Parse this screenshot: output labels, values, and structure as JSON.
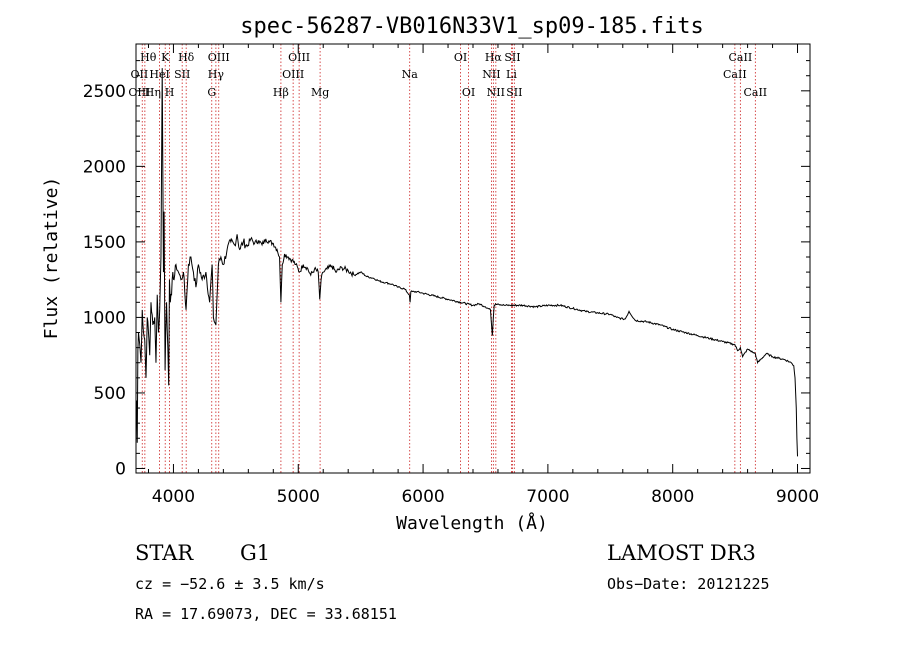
{
  "chart_data": {
    "type": "line",
    "title": "spec-56287-VB016N33V1_sp09-185.fits",
    "xlabel": "Wavelength (Å)",
    "ylabel": "Flux (relative)",
    "xlim": [
      3700,
      9100
    ],
    "ylim": [
      -30,
      2810
    ],
    "xticks": [
      {
        "value": 4000,
        "label": "4000"
      },
      {
        "value": 5000,
        "label": "5000"
      },
      {
        "value": 6000,
        "label": "6000"
      },
      {
        "value": 7000,
        "label": "7000"
      },
      {
        "value": 8000,
        "label": "8000"
      },
      {
        "value": 9000,
        "label": "9000"
      }
    ],
    "yticks": [
      {
        "value": 0,
        "label": "0"
      },
      {
        "value": 500,
        "label": "500"
      },
      {
        "value": 1000,
        "label": "1000"
      },
      {
        "value": 1500,
        "label": "1500"
      },
      {
        "value": 2000,
        "label": "2000"
      },
      {
        "value": 2500,
        "label": "2500"
      }
    ],
    "series": [
      {
        "name": "spectrum",
        "x": [
          3700,
          3705,
          3710,
          3715,
          3720,
          3730,
          3740,
          3750,
          3760,
          3770,
          3780,
          3790,
          3800,
          3810,
          3820,
          3835,
          3850,
          3860,
          3870,
          3880,
          3890,
          3900,
          3910,
          3920,
          3925,
          3933,
          3938,
          3945,
          3955,
          3962,
          3968,
          3975,
          3985,
          3995,
          4005,
          4020,
          4040,
          4060,
          4080,
          4101,
          4120,
          4140,
          4160,
          4180,
          4200,
          4230,
          4260,
          4290,
          4310,
          4320,
          4340,
          4360,
          4380,
          4400,
          4430,
          4460,
          4490,
          4510,
          4530,
          4560,
          4590,
          4620,
          4650,
          4680,
          4710,
          4740,
          4770,
          4800,
          4830,
          4850,
          4861,
          4872,
          4890,
          4920,
          4950,
          4980,
          5010,
          5040,
          5070,
          5100,
          5130,
          5160,
          5172,
          5183,
          5200,
          5230,
          5270,
          5300,
          5350,
          5400,
          5450,
          5500,
          5550,
          5600,
          5650,
          5700,
          5750,
          5800,
          5850,
          5890,
          5896,
          5902,
          5950,
          6000,
          6100,
          6200,
          6300,
          6400,
          6450,
          6500,
          6540,
          6555,
          6563,
          6570,
          6580,
          6600,
          6650,
          6700,
          6800,
          6900,
          7000,
          7100,
          7200,
          7300,
          7400,
          7500,
          7550,
          7600,
          7620,
          7650,
          7700,
          7800,
          7900,
          8000,
          8100,
          8200,
          8300,
          8400,
          8498,
          8520,
          8542,
          8560,
          8600,
          8640,
          8662,
          8680,
          8750,
          8800,
          8850,
          8900,
          8950,
          8970,
          8980,
          8990,
          8995,
          9000
        ],
        "y": [
          320,
          450,
          170,
          780,
          900,
          820,
          700,
          1050,
          900,
          850,
          600,
          1000,
          900,
          750,
          1100,
          950,
          1000,
          700,
          1150,
          900,
          1050,
          1400,
          2650,
          1300,
          1700,
          650,
          900,
          1100,
          800,
          550,
          1250,
          1100,
          1150,
          1300,
          1250,
          1350,
          1300,
          1250,
          1300,
          1050,
          1350,
          1400,
          1300,
          1200,
          1350,
          1250,
          1300,
          1100,
          1350,
          1000,
          950,
          1350,
          1400,
          1350,
          1450,
          1500,
          1480,
          1550,
          1450,
          1500,
          1470,
          1520,
          1490,
          1510,
          1480,
          1520,
          1500,
          1490,
          1450,
          1400,
          1100,
          1350,
          1420,
          1400,
          1380,
          1350,
          1300,
          1350,
          1330,
          1280,
          1320,
          1300,
          1120,
          1250,
          1300,
          1320,
          1340,
          1300,
          1330,
          1310,
          1280,
          1300,
          1270,
          1260,
          1240,
          1230,
          1220,
          1200,
          1190,
          1150,
          1100,
          1170,
          1170,
          1160,
          1140,
          1120,
          1100,
          1080,
          1090,
          1070,
          1050,
          880,
          1000,
          1080,
          1090,
          1090,
          1080,
          1080,
          1080,
          1070,
          1080,
          1080,
          1060,
          1040,
          1030,
          1020,
          1000,
          990,
          990,
          1040,
          980,
          970,
          950,
          920,
          900,
          880,
          860,
          840,
          820,
          780,
          800,
          740,
          790,
          770,
          760,
          700,
          760,
          740,
          730,
          720,
          700,
          680,
          600,
          400,
          200,
          80
        ]
      }
    ],
    "lines": [
      {
        "label": "Hθ",
        "wavelength": 3798,
        "row": 0
      },
      {
        "label": "OII",
        "wavelength": 3727,
        "row": 1
      },
      {
        "label": "OIII",
        "wavelength": 3727,
        "row": 2
      },
      {
        "label": "K",
        "wavelength": 3934,
        "row": 0
      },
      {
        "label": "HeI",
        "wavelength": 3889,
        "row": 1
      },
      {
        "label": "Hη",
        "wavelength": 3835,
        "row": 2
      },
      {
        "label": "Hδ",
        "wavelength": 4102,
        "row": 0
      },
      {
        "label": "SII",
        "wavelength": 4070,
        "row": 1
      },
      {
        "label": "H",
        "wavelength": 3969,
        "row": 2
      },
      {
        "label": "OIII",
        "wavelength": 4363,
        "row": 0
      },
      {
        "label": "Hγ",
        "wavelength": 4340,
        "row": 1
      },
      {
        "label": "G",
        "wavelength": 4307,
        "row": 2
      },
      {
        "label": "OIII",
        "wavelength": 5007,
        "row": 0
      },
      {
        "label": "OIII",
        "wavelength": 4959,
        "row": 1
      },
      {
        "label": "Hβ",
        "wavelength": 4861,
        "row": 2
      },
      {
        "label": "Mg",
        "wavelength": 5175,
        "row": 2
      },
      {
        "label": "Na",
        "wavelength": 5893,
        "row": 1
      },
      {
        "label": "OI",
        "wavelength": 6300,
        "row": 0
      },
      {
        "label": "OI",
        "wavelength": 6364,
        "row": 2
      },
      {
        "label": "Hα",
        "wavelength": 6563,
        "row": 0
      },
      {
        "label": "SII",
        "wavelength": 6716,
        "row": 0
      },
      {
        "label": "NII",
        "wavelength": 6548,
        "row": 1
      },
      {
        "label": "Li",
        "wavelength": 6708,
        "row": 1
      },
      {
        "label": "NII",
        "wavelength": 6583,
        "row": 2
      },
      {
        "label": "SII",
        "wavelength": 6731,
        "row": 2
      },
      {
        "label": "CaII",
        "wavelength": 8542,
        "row": 0
      },
      {
        "label": "CaII",
        "wavelength": 8498,
        "row": 1
      },
      {
        "label": "CaII",
        "wavelength": 8662,
        "row": 2
      }
    ],
    "extra_line_marks": [
      3750,
      3771,
      3889,
      3934,
      3969,
      4070,
      4102,
      4307,
      4340,
      4363,
      4861,
      4959,
      5007,
      5175,
      5893,
      6300,
      6364,
      6548,
      6563,
      6583,
      6708,
      6716,
      6731,
      8498,
      8542,
      8662
    ]
  },
  "info": {
    "class": "STAR",
    "subclass": "G1",
    "survey": "LAMOST DR3",
    "cz": "cz = −52.6 ± 3.5 km/s",
    "obs_date": "Obs−Date: 20121225",
    "coords": "RA =  17.69073, DEC =  33.68151"
  },
  "colors": {
    "line_mark": "#cc2222",
    "spectrum": "#000000",
    "axis": "#000000"
  }
}
